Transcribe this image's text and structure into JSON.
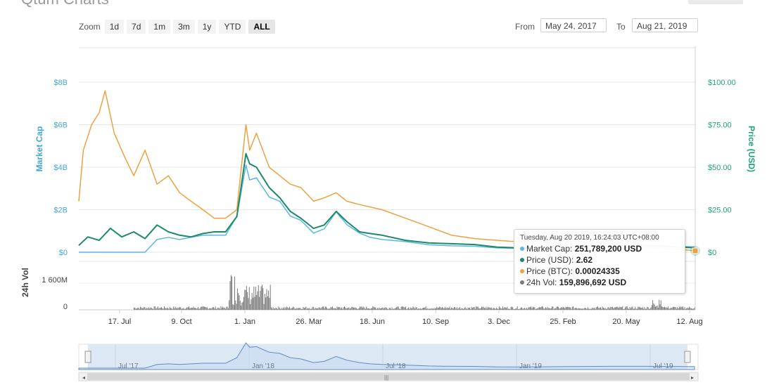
{
  "page": {
    "title": "Qtum Charts"
  },
  "toolbar": {
    "zoom_label": "Zoom",
    "zoom_options": [
      "1d",
      "7d",
      "1m",
      "3m",
      "1y",
      "YTD",
      "ALL"
    ],
    "active_zoom": "ALL",
    "from_label": "From",
    "from_value": "May 24, 2017",
    "to_label": "To",
    "to_value": "Aug 21, 2019"
  },
  "colors": {
    "market_cap": "#5db7dd",
    "price_usd": "#1c8a6a",
    "price_btc": "#eca241",
    "volume": "#7a7a7a",
    "axis_left": "#45a7d4",
    "axis_right": "#1fa37a"
  },
  "tooltip": {
    "date": "Tuesday, Aug 20 2019, 16:24:03 UTC+08:00",
    "rows": [
      {
        "label": "Market Cap:",
        "value": "251,789,200 USD"
      },
      {
        "label": "Price (USD):",
        "value": "2.62"
      },
      {
        "label": "Price (BTC):",
        "value": "0.00024335"
      },
      {
        "label": "24h Vol:",
        "value": "159,896,692 USD"
      }
    ]
  },
  "chart_data": {
    "type": "line",
    "title": "",
    "x_tick_labels": [
      "17. Jul",
      "9. Oct",
      "1. Jan",
      "26. Mar",
      "18. Jun",
      "10. Sep",
      "3. Dec",
      "25. Feb",
      "20. May",
      "12. Aug"
    ],
    "xlim": [
      "2017-05-24",
      "2019-08-21"
    ],
    "left_axis": {
      "label": "Market Cap",
      "ticks": [
        "$0",
        "$2B",
        "$4B",
        "$6B",
        "$8B"
      ],
      "ylim": [
        0,
        8000000000
      ]
    },
    "right_axis": {
      "label": "Price (USD)",
      "ticks": [
        "$0",
        "$25.00",
        "$50.00",
        "$75.00",
        "$100.00"
      ],
      "ylim": [
        0,
        100
      ]
    },
    "volume_axis": {
      "label": "24h Vol",
      "ticks": [
        "0",
        "1 600M"
      ],
      "ylim": [
        0,
        3200000000
      ]
    },
    "grid": true,
    "series": [
      {
        "name": "Market Cap",
        "axis": "left",
        "x": [
          "2017-05-24",
          "2017-06-05",
          "2017-06-20",
          "2017-07-05",
          "2017-07-20",
          "2017-08-05",
          "2017-08-20",
          "2017-09-05",
          "2017-09-20",
          "2017-10-05",
          "2017-10-20",
          "2017-11-05",
          "2017-11-20",
          "2017-12-05",
          "2017-12-20",
          "2018-01-01",
          "2018-01-06",
          "2018-01-15",
          "2018-02-01",
          "2018-02-15",
          "2018-03-01",
          "2018-03-15",
          "2018-04-01",
          "2018-04-15",
          "2018-05-01",
          "2018-05-15",
          "2018-06-01",
          "2018-06-15",
          "2018-07-01",
          "2018-08-01",
          "2018-09-01",
          "2018-10-01",
          "2018-11-01",
          "2018-12-01",
          "2019-01-01",
          "2019-03-01",
          "2019-05-01",
          "2019-06-15",
          "2019-08-20"
        ],
        "values": [
          0,
          0,
          0,
          0,
          0,
          0,
          0,
          600000000.0,
          700000000.0,
          600000000.0,
          700000000.0,
          800000000.0,
          800000000.0,
          800000000.0,
          1700000000.0,
          4100000000.0,
          3400000000.0,
          3500000000.0,
          2600000000.0,
          2400000000.0,
          1700000000.0,
          1500000000.0,
          900000000.0,
          1100000000.0,
          1900000000.0,
          1300000000.0,
          900000000.0,
          700000000.0,
          600000000.0,
          500000000.0,
          350000000.0,
          300000000.0,
          280000000.0,
          200000000.0,
          180000000.0,
          250000000.0,
          300000000.0,
          300000000.0,
          250000000.0
        ]
      },
      {
        "name": "Price (USD)",
        "axis": "right",
        "x": [
          "2017-05-24",
          "2017-06-05",
          "2017-06-20",
          "2017-07-05",
          "2017-07-20",
          "2017-08-05",
          "2017-08-20",
          "2017-09-05",
          "2017-09-20",
          "2017-10-05",
          "2017-10-20",
          "2017-11-05",
          "2017-11-20",
          "2017-12-05",
          "2017-12-20",
          "2018-01-01",
          "2018-01-06",
          "2018-01-15",
          "2018-02-01",
          "2018-02-15",
          "2018-03-01",
          "2018-03-15",
          "2018-04-01",
          "2018-04-15",
          "2018-05-01",
          "2018-05-15",
          "2018-06-01",
          "2018-06-15",
          "2018-07-01",
          "2018-08-01",
          "2018-09-01",
          "2018-10-01",
          "2018-11-01",
          "2018-12-01",
          "2019-01-01",
          "2019-03-01",
          "2019-05-01",
          "2019-06-15",
          "2019-08-20"
        ],
        "values": [
          4,
          9,
          7,
          14,
          9,
          12,
          8,
          16,
          12,
          10,
          9,
          11,
          12,
          12,
          21,
          58,
          52,
          50,
          38,
          32,
          24,
          20,
          14,
          16,
          24,
          18,
          12,
          11,
          10,
          7,
          5.5,
          5,
          4.5,
          3,
          2.5,
          3.5,
          4,
          4,
          2.62
        ]
      },
      {
        "name": "Price (BTC)",
        "axis": "right",
        "x": [
          "2017-05-24",
          "2017-05-30",
          "2017-06-10",
          "2017-06-20",
          "2017-06-28",
          "2017-07-10",
          "2017-07-25",
          "2017-08-05",
          "2017-08-20",
          "2017-09-05",
          "2017-09-20",
          "2017-10-05",
          "2017-10-20",
          "2017-11-05",
          "2017-11-20",
          "2017-12-05",
          "2017-12-20",
          "2018-01-01",
          "2018-01-06",
          "2018-01-15",
          "2018-02-01",
          "2018-02-15",
          "2018-03-01",
          "2018-03-15",
          "2018-04-01",
          "2018-04-15",
          "2018-05-01",
          "2018-05-15",
          "2018-06-01",
          "2018-07-01",
          "2018-08-01",
          "2018-09-01",
          "2018-10-01",
          "2018-11-01",
          "2018-12-01",
          "2019-01-01",
          "2019-03-01",
          "2019-05-01",
          "2019-06-15",
          "2019-08-20"
        ],
        "values": [
          30,
          60,
          75,
          82,
          95,
          70,
          55,
          45,
          60,
          40,
          45,
          35,
          30,
          25,
          20,
          20,
          25,
          75,
          60,
          70,
          50,
          45,
          40,
          38,
          30,
          32,
          35,
          30,
          28,
          25,
          20,
          15,
          10,
          8,
          7,
          6,
          5,
          4,
          3,
          1
        ]
      }
    ]
  }
}
